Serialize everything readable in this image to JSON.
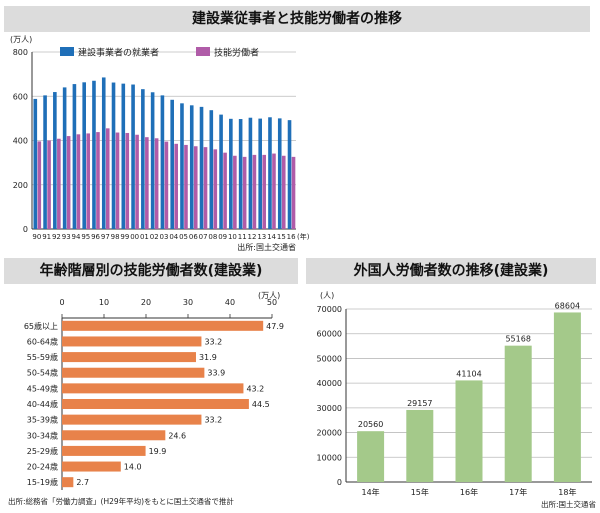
{
  "chart_data": [
    {
      "type": "bar",
      "title": "建設業従事者と技能労働者の推移",
      "yunit": "(万人)",
      "xunit": "(年)",
      "source": "出所:国土交通省",
      "ylim": [
        0,
        800
      ],
      "yticks": [
        0,
        200,
        400,
        600,
        800
      ],
      "categories": [
        "90",
        "91",
        "92",
        "93",
        "94",
        "95",
        "96",
        "97",
        "98",
        "99",
        "00",
        "01",
        "02",
        "03",
        "04",
        "05",
        "06",
        "07",
        "08",
        "09",
        "10",
        "11",
        "12",
        "13",
        "14",
        "15",
        "16"
      ],
      "series": [
        {
          "name": "建設事業者の就業者",
          "color": "#1f6fb8",
          "values": [
            588,
            604,
            619,
            640,
            655,
            663,
            670,
            685,
            662,
            657,
            653,
            632,
            618,
            604,
            584,
            568,
            559,
            552,
            537,
            517,
            498,
            497,
            503,
            499,
            505,
            500,
            492
          ]
        },
        {
          "name": "技能労働者",
          "color": "#b05ca8",
          "values": [
            396,
            400,
            408,
            420,
            428,
            432,
            438,
            455,
            436,
            434,
            426,
            415,
            410,
            395,
            385,
            380,
            374,
            370,
            360,
            345,
            331,
            326,
            335,
            335,
            341,
            331,
            326
          ]
        }
      ]
    },
    {
      "type": "bar",
      "orientation": "horizontal",
      "title": "年齢階層別の技能労働者数(建設業)",
      "xunit": "(万人)",
      "xlim": [
        0,
        50
      ],
      "xticks": [
        0,
        10,
        20,
        30,
        40,
        50
      ],
      "color": "#e8824a",
      "categories": [
        "65歳以上",
        "60-64歳",
        "55-59歳",
        "50-54歳",
        "45-49歳",
        "40-44歳",
        "35-39歳",
        "30-34歳",
        "25-29歳",
        "20-24歳",
        "15-19歳"
      ],
      "values": [
        47.9,
        33.2,
        31.9,
        33.9,
        43.2,
        44.5,
        33.2,
        24.6,
        19.9,
        14.0,
        2.7
      ],
      "labels": [
        "47.9",
        "33.2",
        "31.9",
        "33.9",
        "43.2",
        "44.5",
        "33.2",
        "24.6",
        "19.9",
        "14.0",
        "2.7"
      ],
      "source": "出所:総務省「労働力調査」(H29年平均)をもとに国土交通省で推計"
    },
    {
      "type": "bar",
      "title": "外国人労働者数の推移(建設業)",
      "yunit": "(人)",
      "ylim": [
        0,
        70000
      ],
      "yticks": [
        0,
        10000,
        20000,
        30000,
        40000,
        50000,
        60000,
        70000
      ],
      "color": "#a4c98a",
      "categories": [
        "14年",
        "15年",
        "16年",
        "17年",
        "18年"
      ],
      "values": [
        20560,
        29157,
        41104,
        55168,
        68604
      ],
      "labels": [
        "20560",
        "29157",
        "41104",
        "55168",
        "68604"
      ],
      "source": "出所:国土交通省"
    }
  ]
}
